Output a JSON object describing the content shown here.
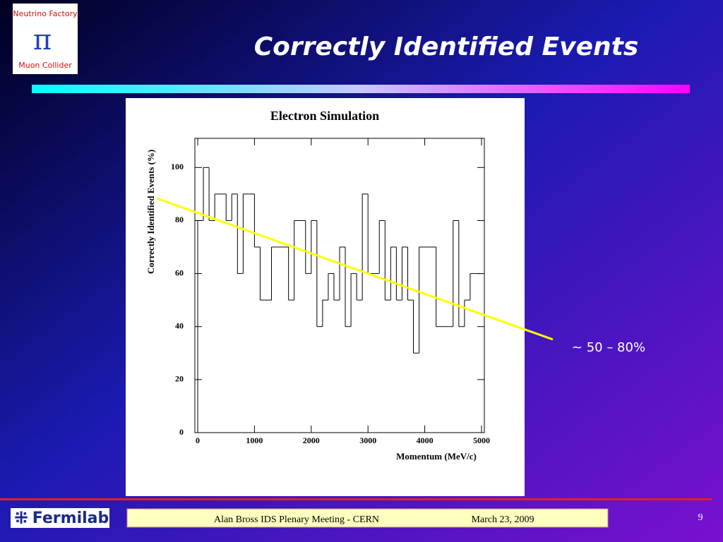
{
  "slide": {
    "title": "Correctly Identified Events",
    "page": "9",
    "logo": {
      "top": "Neutrino Factory",
      "symbol": "π",
      "bottom": "Muon Collider"
    },
    "brand": "Fermilab",
    "footer": {
      "left": "Alan Bross   IDS Plenary Meeting - CERN",
      "right": "March 23,  2009"
    }
  },
  "chart_data": {
    "type": "histogram",
    "title": "Electron Simulation",
    "x_label": "Momentum (MeV/c)",
    "y_label": "Correctly Identified Events (%)",
    "bins": [
      0,
      100,
      200,
      300,
      400,
      500,
      600,
      700,
      800,
      900,
      1000,
      1100,
      1200,
      1300,
      1400,
      1500,
      1600,
      1700,
      1800,
      1900,
      2000,
      2100,
      2200,
      2300,
      2400,
      2500,
      2600,
      2700,
      2800,
      2900,
      3000,
      3100,
      3200,
      3300,
      3400,
      3500,
      3600,
      3700,
      3800,
      3900,
      4000,
      4100,
      4200,
      4300,
      4400,
      4500,
      4600,
      4700,
      4800,
      4900,
      5000
    ],
    "values": [
      80,
      100,
      80,
      90,
      90,
      80,
      90,
      60,
      90,
      90,
      70,
      50,
      50,
      70,
      70,
      70,
      50,
      80,
      80,
      60,
      80,
      40,
      50,
      60,
      50,
      70,
      40,
      60,
      50,
      90,
      60,
      60,
      80,
      50,
      70,
      50,
      70,
      50,
      30,
      70,
      70,
      70,
      40,
      40,
      40,
      80,
      40,
      50,
      60,
      60
    ],
    "color": "#000000",
    "xlim": [
      -50,
      5050
    ],
    "xticks": [
      0,
      1000,
      2000,
      3000,
      4000,
      5000
    ],
    "ylim": [
      0,
      111
    ],
    "yticks": [
      0,
      20,
      40,
      60,
      80,
      100
    ],
    "annotation": "~ 50 – 80%"
  }
}
